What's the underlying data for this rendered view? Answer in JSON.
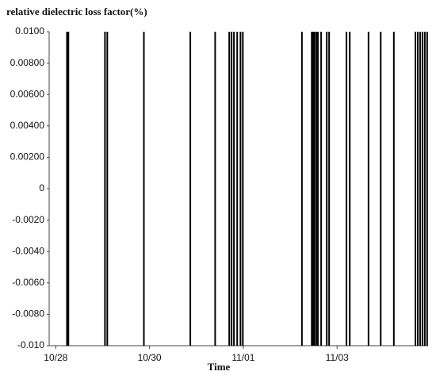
{
  "chart_data": {
    "type": "event-lines",
    "title": "relative dielectric loss factor(%)",
    "x_label": "Time",
    "color": "#000000",
    "x": [
      0.24,
      0.27,
      1.05,
      1.1,
      1.88,
      2.87,
      3.4,
      3.7,
      3.75,
      3.8,
      3.87,
      3.94,
      3.99,
      5.25,
      5.46,
      5.49,
      5.52,
      5.56,
      5.59,
      5.66,
      5.78,
      5.83,
      6.2,
      6.27,
      6.67,
      6.93,
      7.21,
      7.67,
      7.72,
      7.77,
      7.82,
      7.87,
      7.92
    ],
    "xlim": [
      -0.14,
      7.94
    ],
    "xticks": [
      {
        "value": 0,
        "label": "10/28"
      },
      {
        "value": 2,
        "label": "10/30"
      },
      {
        "value": 4,
        "label": "11/01"
      },
      {
        "value": 6,
        "label": "11/03"
      }
    ],
    "ylim": [
      -0.01,
      0.01
    ],
    "yticks": [
      {
        "value": 0.01,
        "label": "0.0100"
      },
      {
        "value": 0.008,
        "label": "0.00800"
      },
      {
        "value": 0.006,
        "label": "0.00600"
      },
      {
        "value": 0.004,
        "label": "0.00400"
      },
      {
        "value": 0.002,
        "label": "0.00200"
      },
      0,
      {
        "value": -0.002,
        "label": "-0.0020"
      },
      {
        "value": -0.004,
        "label": "-0.0040"
      },
      {
        "value": -0.006,
        "label": "-0.0060"
      },
      {
        "value": -0.008,
        "label": "-0.0080"
      },
      {
        "value": -0.01,
        "label": "-0.010"
      }
    ]
  }
}
